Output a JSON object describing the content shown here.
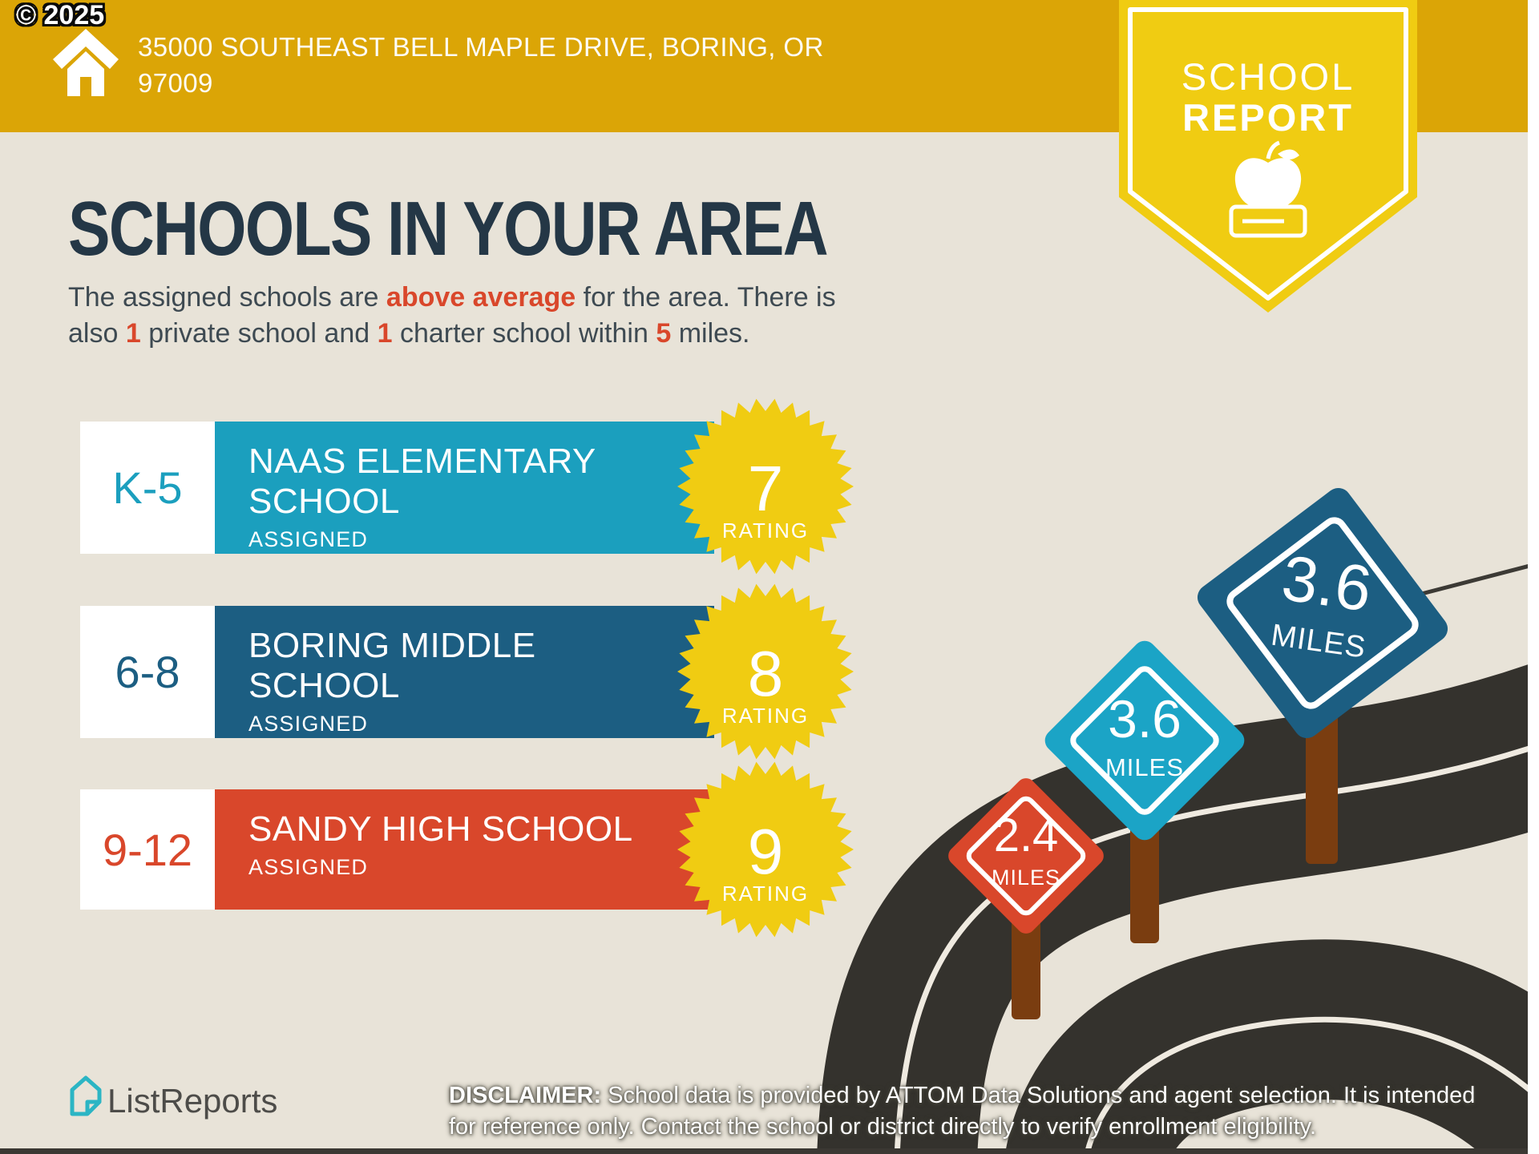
{
  "watermark": "© 2025",
  "header": {
    "address_line1": "35000 SOUTHEAST BELL MAPLE DRIVE, BORING, OR",
    "address_line2": "97009",
    "background_color": "#DBA506"
  },
  "report_badge": {
    "line1": "SCHOOL",
    "line2": "REPORT",
    "background_color": "#F0CC12"
  },
  "title": "SCHOOLS IN YOUR AREA",
  "subtitle": {
    "p1": "The assigned schools are ",
    "h1": "above average",
    "p2": " for the area. There is",
    "p3": "also ",
    "h2": "1",
    "p4": " private school and ",
    "h3": "1",
    "p5": " charter school within ",
    "h4": "5",
    "p6": " miles.",
    "highlight_color": "#D9472B"
  },
  "schools": [
    {
      "grades": "K-5",
      "name": "NAAS ELEMENTARY SCHOOL",
      "status": "ASSIGNED",
      "rating": "7",
      "rating_label": "RATING",
      "color": "#1B9FBE"
    },
    {
      "grades": "6-8",
      "name": "BORING MIDDLE SCHOOL",
      "status": "ASSIGNED",
      "rating": "8",
      "rating_label": "RATING",
      "color": "#1C5E82"
    },
    {
      "grades": "9-12",
      "name": "SANDY HIGH SCHOOL",
      "status": "ASSIGNED",
      "rating": "9",
      "rating_label": "RATING",
      "color": "#D9472B"
    }
  ],
  "rating_badge_color": "#F0CC12",
  "road_signs": [
    {
      "distance": "2.4",
      "unit": "MILES",
      "color": "#D9472B"
    },
    {
      "distance": "3.6",
      "unit": "MILES",
      "color": "#1BA4C6"
    },
    {
      "distance": "3.6",
      "unit": "MILES",
      "color": "#1C5E82"
    }
  ],
  "road_color": "#34322D",
  "post_color": "#7A3D10",
  "footer": {
    "logo_text": "ListReports",
    "disclaimer_label": "DISCLAIMER:",
    "disclaimer_line1": " School data is provided by ATTOM Data Solutions and agent selection. It is intended",
    "disclaimer_line2": "for reference only. Contact the school or district directly to verify enrollment eligibility."
  }
}
